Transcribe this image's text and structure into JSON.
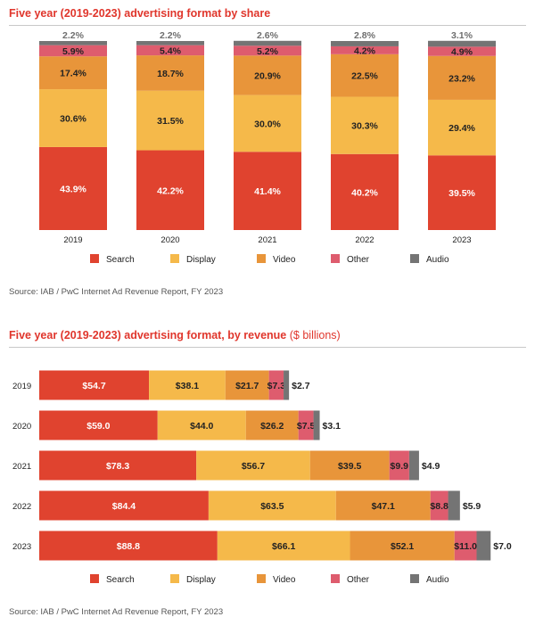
{
  "colors": {
    "accent": "#e0362c",
    "search": "#e0432f",
    "display": "#f5b94a",
    "video": "#e8953a",
    "other": "#de5c6e",
    "audio": "#747474"
  },
  "legend": [
    {
      "key": "search",
      "label": "Search"
    },
    {
      "key": "display",
      "label": "Display"
    },
    {
      "key": "video",
      "label": "Video"
    },
    {
      "key": "other",
      "label": "Other"
    },
    {
      "key": "audio",
      "label": "Audio"
    }
  ],
  "share_chart": {
    "title": "Five year (2019-2023) advertising format by share",
    "source": "Source: IAB / PwC Internet Ad Revenue Report, FY 2023"
  },
  "revenue_chart": {
    "title": "Five year (2019-2023) advertising format, by revenue",
    "title_unit": "($ billions)",
    "source": "Source: IAB / PwC Internet Ad Revenue Report, FY 2023"
  },
  "chart_data": [
    {
      "type": "bar",
      "stacked": true,
      "orientation": "vertical",
      "title": "Five year (2019-2023) advertising format by share",
      "categories": [
        "2019",
        "2020",
        "2021",
        "2022",
        "2023"
      ],
      "series": [
        {
          "name": "Search",
          "key": "search",
          "values": [
            43.9,
            42.2,
            41.4,
            40.2,
            39.5
          ],
          "labels": [
            "43.9%",
            "42.2%",
            "41.4%",
            "40.2%",
            "39.5%"
          ]
        },
        {
          "name": "Display",
          "key": "display",
          "values": [
            30.6,
            31.5,
            30.0,
            30.3,
            29.4
          ],
          "labels": [
            "30.6%",
            "31.5%",
            "30.0%",
            "30.3%",
            "29.4%"
          ]
        },
        {
          "name": "Video",
          "key": "video",
          "values": [
            17.4,
            18.7,
            20.9,
            22.5,
            23.2
          ],
          "labels": [
            "17.4%",
            "18.7%",
            "20.9%",
            "22.5%",
            "23.2%"
          ]
        },
        {
          "name": "Other",
          "key": "other",
          "values": [
            5.9,
            5.4,
            5.2,
            4.2,
            4.9
          ],
          "labels": [
            "5.9%",
            "5.4%",
            "5.2%",
            "4.2%",
            "4.9%"
          ]
        },
        {
          "name": "Audio",
          "key": "audio",
          "values": [
            2.2,
            2.2,
            2.6,
            2.8,
            3.1
          ],
          "labels": [
            "2.2%",
            "2.2%",
            "2.6%",
            "2.8%",
            "3.1%"
          ]
        }
      ],
      "ylim": [
        0,
        100
      ],
      "grid": false,
      "legend_position": "bottom"
    },
    {
      "type": "bar",
      "stacked": true,
      "orientation": "horizontal",
      "title": "Five year (2019-2023) advertising format, by revenue ($ billions)",
      "categories": [
        "2019",
        "2020",
        "2021",
        "2022",
        "2023"
      ],
      "series": [
        {
          "name": "Search",
          "key": "search",
          "values": [
            54.7,
            59.0,
            78.3,
            84.4,
            88.8
          ],
          "labels": [
            "$54.7",
            "$59.0",
            "$78.3",
            "$84.4",
            "$88.8"
          ]
        },
        {
          "name": "Display",
          "key": "display",
          "values": [
            38.1,
            44.0,
            56.7,
            63.5,
            66.1
          ],
          "labels": [
            "$38.1",
            "$44.0",
            "$56.7",
            "$63.5",
            "$66.1"
          ]
        },
        {
          "name": "Video",
          "key": "video",
          "values": [
            21.7,
            26.2,
            39.5,
            47.1,
            52.1
          ],
          "labels": [
            "$21.7",
            "$26.2",
            "$39.5",
            "$47.1",
            "$52.1"
          ]
        },
        {
          "name": "Other",
          "key": "other",
          "values": [
            7.3,
            7.5,
            9.9,
            8.8,
            11.0
          ],
          "labels": [
            "$7.3",
            "$7.5",
            "$9.9",
            "$8.8",
            "$11.0"
          ]
        },
        {
          "name": "Audio",
          "key": "audio",
          "values": [
            2.7,
            3.1,
            4.9,
            5.9,
            7.0
          ],
          "labels": [
            "$2.7",
            "$3.1",
            "$4.9",
            "$5.9",
            "$7.0"
          ]
        }
      ],
      "grid": false,
      "legend_position": "bottom"
    }
  ]
}
